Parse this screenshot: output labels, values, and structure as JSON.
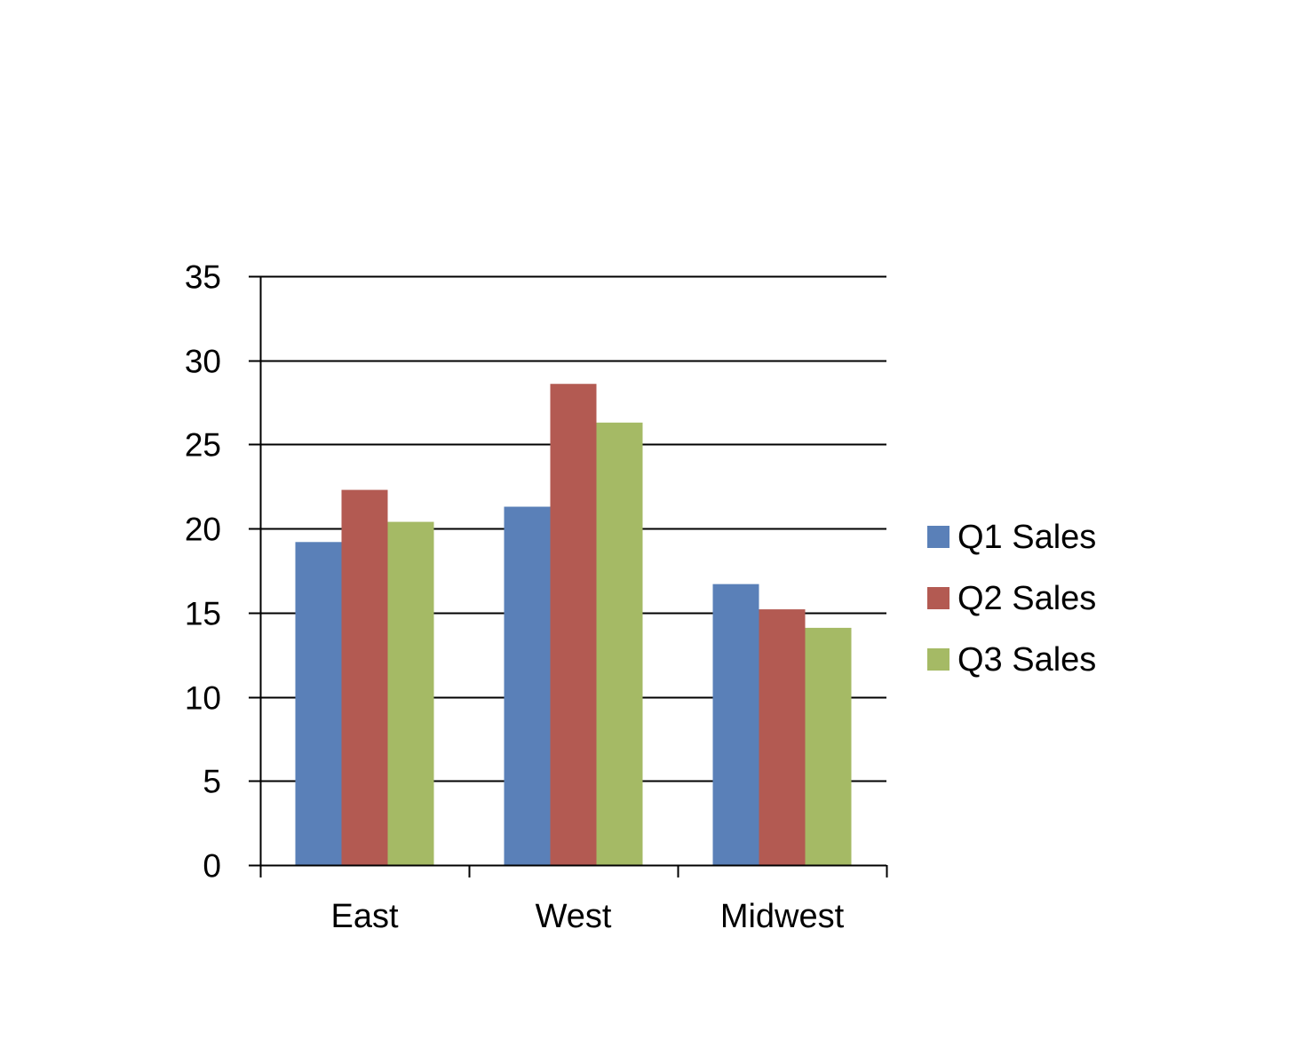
{
  "chart_data": {
    "type": "bar",
    "title": "",
    "xlabel": "",
    "ylabel": "",
    "categories": [
      "East",
      "West",
      "Midwest"
    ],
    "series": [
      {
        "name": "Q1 Sales",
        "color": "#5A80B8",
        "values": [
          19.2,
          21.3,
          16.7
        ]
      },
      {
        "name": "Q2 Sales",
        "color": "#B35A52",
        "values": [
          22.3,
          28.6,
          15.2
        ]
      },
      {
        "name": "Q3 Sales",
        "color": "#A5BA65",
        "values": [
          20.4,
          26.3,
          14.1
        ]
      }
    ],
    "ylim": [
      0,
      35
    ],
    "yticks": [
      0,
      5,
      10,
      15,
      20,
      25,
      30,
      35
    ],
    "grid": true,
    "legend": "right"
  }
}
